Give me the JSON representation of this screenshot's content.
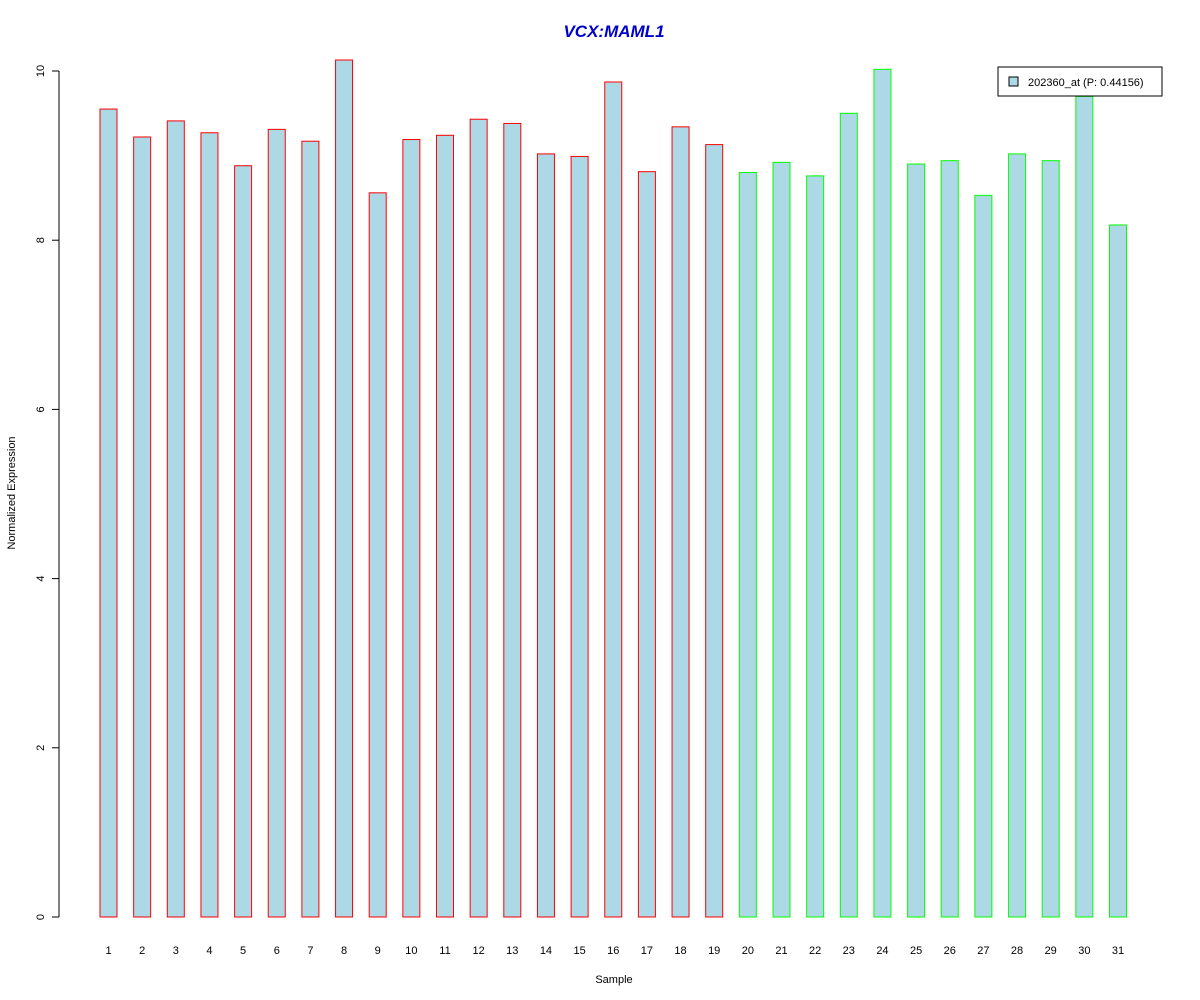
{
  "chart_data": {
    "type": "bar",
    "title": "VCX:MAML1",
    "xlabel": "Sample",
    "ylabel": "Normalized Expression",
    "ylim": [
      0,
      10
    ],
    "yticks": [
      "0",
      "2",
      "4",
      "6",
      "8",
      "10"
    ],
    "categories": [
      "1",
      "2",
      "3",
      "4",
      "5",
      "6",
      "7",
      "8",
      "9",
      "10",
      "11",
      "12",
      "13",
      "14",
      "15",
      "16",
      "17",
      "18",
      "19",
      "20",
      "21",
      "22",
      "23",
      "24",
      "25",
      "26",
      "27",
      "28",
      "29",
      "30",
      "31"
    ],
    "values": [
      9.55,
      9.22,
      9.41,
      9.27,
      8.88,
      9.31,
      9.17,
      10.13,
      8.56,
      9.19,
      9.24,
      9.43,
      9.38,
      9.02,
      8.99,
      9.87,
      8.81,
      9.34,
      9.13,
      8.8,
      8.92,
      8.76,
      9.5,
      10.02,
      8.9,
      8.94,
      8.53,
      9.02,
      8.94,
      9.7,
      8.18
    ],
    "group_colors": [
      "#ff0000",
      "#ff0000",
      "#ff0000",
      "#ff0000",
      "#ff0000",
      "#ff0000",
      "#ff0000",
      "#ff0000",
      "#ff0000",
      "#ff0000",
      "#ff0000",
      "#ff0000",
      "#ff0000",
      "#ff0000",
      "#ff0000",
      "#ff0000",
      "#ff0000",
      "#ff0000",
      "#ff0000",
      "#00ff00",
      "#00ff00",
      "#00ff00",
      "#00ff00",
      "#00ff00",
      "#00ff00",
      "#00ff00",
      "#00ff00",
      "#00ff00",
      "#00ff00",
      "#00ff00",
      "#00ff00"
    ],
    "fill_color": "#add8e6",
    "title_color": "#0000cd",
    "grid": false,
    "legend": {
      "placement": "top-right",
      "entries": [
        {
          "label": "202360_at (P: 0.44156)",
          "color": "#add8e6"
        }
      ]
    }
  }
}
